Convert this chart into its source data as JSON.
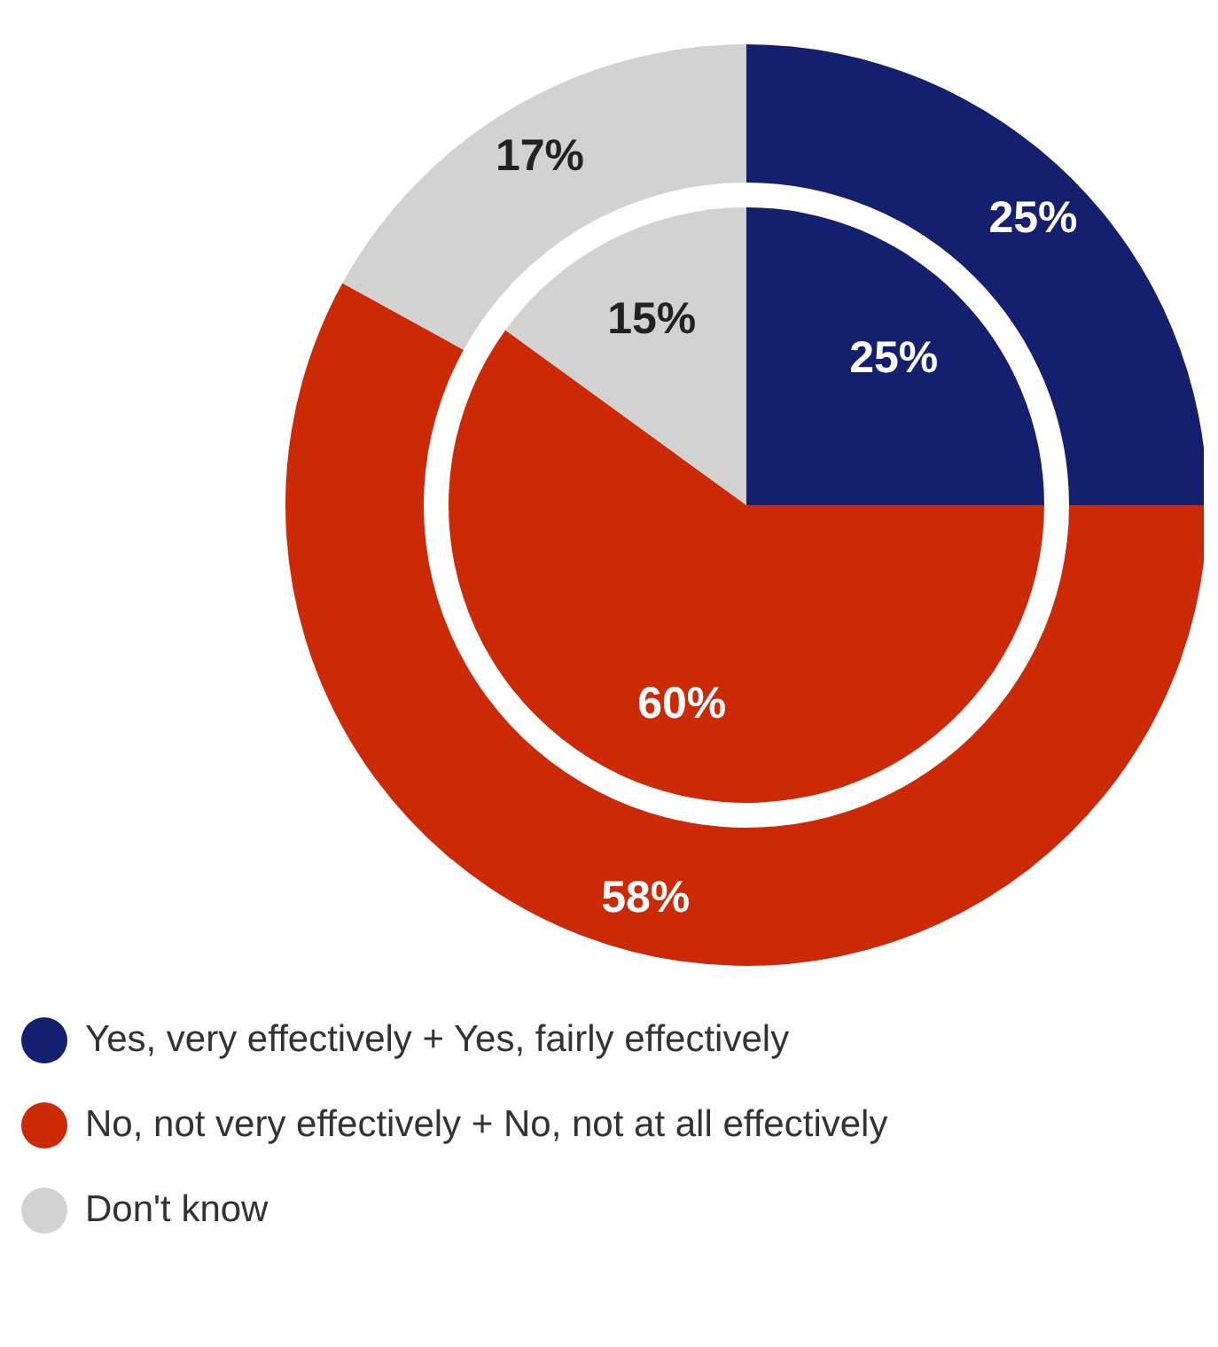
{
  "chart_data": {
    "type": "pie",
    "categories": [
      "Yes, very effectively + Yes, fairly effectively",
      "No, not very effectively + No, not at all effectively",
      "Don't know"
    ],
    "colors": [
      "#141f6e",
      "#cc2a06",
      "#d2d2d2"
    ],
    "series": [
      {
        "values": [
          25,
          58,
          17
        ],
        "value_labels": [
          "25%",
          "58%",
          "17%"
        ]
      },
      {
        "values": [
          25,
          60,
          15
        ],
        "value_labels": [
          "25%",
          "60%",
          "15%"
        ]
      }
    ],
    "legend": "bottom"
  }
}
